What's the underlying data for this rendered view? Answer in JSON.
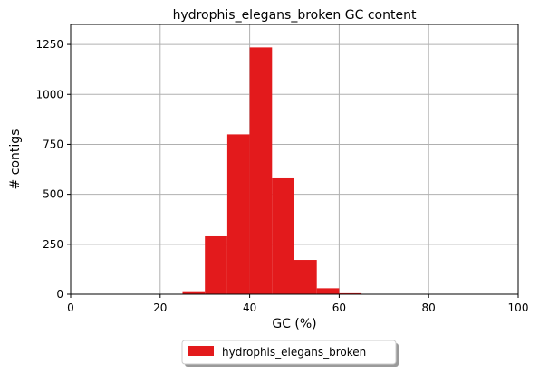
{
  "chart_data": {
    "type": "bar",
    "title": "hydrophis_elegans_broken GC content",
    "xlabel": "GC (%)",
    "ylabel": "# contigs",
    "xlim": [
      0,
      100
    ],
    "ylim": [
      0,
      1350
    ],
    "xticks": [
      0,
      20,
      40,
      60,
      80,
      100
    ],
    "yticks": [
      0,
      250,
      500,
      750,
      1000,
      1250
    ],
    "grid": true,
    "legend_placement": "bottom-center",
    "series": [
      {
        "name": "hydrophis_elegans_broken",
        "color": "#e31a1c",
        "bins": [
          {
            "start": 25,
            "end": 30,
            "value": 15
          },
          {
            "start": 30,
            "end": 35,
            "value": 290
          },
          {
            "start": 35,
            "end": 40,
            "value": 800
          },
          {
            "start": 40,
            "end": 45,
            "value": 1235
          },
          {
            "start": 45,
            "end": 50,
            "value": 580
          },
          {
            "start": 50,
            "end": 55,
            "value": 172
          },
          {
            "start": 55,
            "end": 60,
            "value": 30
          },
          {
            "start": 60,
            "end": 65,
            "value": 5
          }
        ]
      }
    ]
  }
}
